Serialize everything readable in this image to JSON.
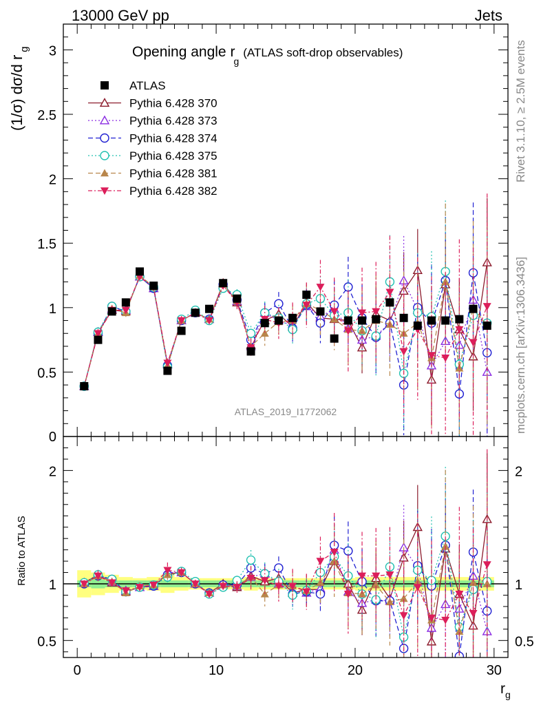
{
  "header": {
    "left": "13000 GeV pp",
    "right": "Jets"
  },
  "side_labels": {
    "rivet": "Rivet 3.1.10, ≥ 2.5M events",
    "mcplots": "mcplots.cern.ch [arXiv:1306.3436]"
  },
  "watermark": "ATLAS_2019_I1772062",
  "colors": {
    "atlas": "#000000",
    "p370": "#8b1a2b",
    "p373": "#8a2be2",
    "p374": "#1f1fd1",
    "p375": "#20c0b0",
    "p381": "#b8864b",
    "p382": "#dc1e5a",
    "band_inner": "#90ee90",
    "band_outer": "#ffff80"
  },
  "chart_data": [
    {
      "type": "scatter",
      "title_main": "Opening angle r",
      "title_sub": "g",
      "title_rest": "(ATLAS soft-drop observables)",
      "ylabel_main": "(1/σ) dσ/d r",
      "ylabel_sub": "g",
      "xlim": [
        -1,
        31
      ],
      "ylim": [
        0,
        3.2
      ],
      "yticks": [
        0.5,
        1,
        1.5,
        2,
        2.5,
        3
      ],
      "ytick_labels": [
        "0.5",
        "1",
        "1.5",
        "2",
        "2.5",
        "3"
      ],
      "partial_tick_label": "0",
      "legend_position": "top-left",
      "x": [
        0.5,
        1.5,
        2.5,
        3.5,
        4.5,
        5.5,
        6.5,
        7.5,
        8.5,
        9.5,
        10.5,
        11.5,
        12.5,
        13.5,
        14.5,
        15.5,
        16.5,
        17.5,
        18.5,
        19.5,
        20.5,
        21.5,
        22.5,
        23.5,
        24.5,
        25.5,
        26.5,
        27.5,
        28.5,
        29.5
      ],
      "series": [
        {
          "name": "ATLAS",
          "marker": "square",
          "y": [
            0.39,
            0.75,
            0.97,
            1.04,
            1.28,
            1.17,
            0.51,
            0.82,
            0.96,
            0.99,
            1.19,
            1.07,
            0.66,
            0.88,
            0.9,
            0.92,
            1.1,
            0.97,
            0.76,
            0.9,
            0.9,
            0.91,
            1.04,
            0.92,
            0.86,
            0.9,
            0.9,
            0.91,
            0.99,
            0.86
          ]
        },
        {
          "name": "Pythia 6.428 370",
          "marker": "open-triangle",
          "y": [
            0.39,
            0.81,
            0.98,
            0.97,
            1.24,
            1.15,
            0.56,
            0.9,
            0.96,
            0.91,
            1.19,
            1.04,
            0.71,
            0.9,
            0.95,
            0.85,
            1.04,
            0.92,
            0.91,
            0.9,
            0.69,
            0.95,
            0.9,
            1.13,
            1.29,
            0.44,
            1.18,
            0.83,
            0.62,
            1.35
          ]
        },
        {
          "name": "Pythia 6.428 373",
          "marker": "open-triangle",
          "y": [
            0.39,
            0.81,
            0.99,
            0.98,
            1.24,
            1.15,
            0.56,
            0.9,
            0.96,
            0.91,
            1.18,
            1.05,
            0.7,
            0.96,
            0.9,
            0.86,
            1.01,
            0.93,
            0.99,
            0.84,
            0.75,
            0.78,
            0.88,
            1.21,
            0.98,
            0.55,
            0.74,
            0.71,
            1.06,
            0.5
          ]
        },
        {
          "name": "Pythia 6.428 374",
          "marker": "open-circle",
          "y": [
            0.39,
            0.8,
            1.01,
            0.97,
            1.24,
            1.15,
            0.55,
            0.9,
            0.96,
            0.91,
            1.18,
            1.06,
            0.75,
            0.96,
            1.03,
            0.84,
            1.02,
            0.88,
            1.02,
            1.16,
            0.92,
            0.77,
            0.88,
            0.4,
            1.0,
            0.88,
            1.21,
            0.33,
            1.27,
            0.65
          ]
        },
        {
          "name": "Pythia 6.428 375",
          "marker": "open-circle",
          "y": [
            0.39,
            0.81,
            1.01,
            0.97,
            1.24,
            1.16,
            0.54,
            0.91,
            0.98,
            0.9,
            1.15,
            1.1,
            0.8,
            0.96,
            0.92,
            0.83,
            1.03,
            1.07,
            0.94,
            0.96,
            0.82,
            0.78,
            1.2,
            0.49,
            0.96,
            0.93,
            1.28,
            0.56,
            0.94,
            0.88
          ]
        },
        {
          "name": "Pythia 6.428 381",
          "marker": "triangle",
          "y": [
            0.39,
            0.8,
            0.99,
            0.96,
            1.25,
            1.16,
            0.55,
            0.9,
            0.96,
            0.91,
            1.18,
            1.05,
            0.7,
            0.8,
            0.89,
            0.9,
            1.03,
            0.98,
            0.91,
            0.83,
            0.82,
            0.9,
            0.87,
            0.8,
            0.88,
            0.61,
            1.2,
            0.53,
            1.0,
            0.86
          ]
        },
        {
          "name": "Pythia 6.428 382",
          "marker": "inv-triangle",
          "y": [
            0.39,
            0.8,
            0.98,
            0.98,
            1.24,
            1.16,
            0.57,
            0.9,
            0.96,
            0.9,
            1.17,
            1.04,
            0.69,
            0.91,
            0.88,
            0.9,
            1.02,
            1.16,
            0.97,
            0.82,
            0.96,
            0.97,
            1.12,
            0.66,
            0.83,
            0.63,
            0.61,
            0.83,
            0.73,
            1.01
          ]
        }
      ],
      "errors": [
        0.005,
        0.02,
        0.02,
        0.02,
        0.02,
        0.02,
        0.02,
        0.02,
        0.02,
        0.02,
        0.02,
        0.03,
        0.04,
        0.06,
        0.07,
        0.08,
        0.1,
        0.12,
        0.15,
        0.18,
        0.2,
        0.22,
        0.25,
        0.3,
        0.32,
        0.35,
        0.38,
        0.4,
        0.42,
        0.5
      ]
    },
    {
      "type": "scatter",
      "ylabel": "Ratio to ATLAS",
      "xlabel_main": "r",
      "xlabel_sub": "g",
      "xlim": [
        -1,
        31
      ],
      "ylim": [
        0.35,
        2.3
      ],
      "xticks": [
        0,
        10,
        20,
        30
      ],
      "xtick_labels": [
        "0",
        "10",
        "20",
        "30"
      ],
      "yticks": [
        0.5,
        1,
        2
      ],
      "ytick_labels": [
        "0.5",
        "1",
        "2"
      ],
      "band_inner": [
        0.03,
        0.04,
        0.03,
        0.03,
        0.03,
        0.03,
        0.03,
        0.03,
        0.03,
        0.03,
        0.03,
        0.03,
        0.03,
        0.03,
        0.03,
        0.03,
        0.03,
        0.03,
        0.03,
        0.03,
        0.03,
        0.03,
        0.03,
        0.03,
        0.03,
        0.03,
        0.03,
        0.03,
        0.03,
        0.03
      ],
      "band_outer": [
        0.12,
        0.1,
        0.08,
        0.06,
        0.05,
        0.06,
        0.08,
        0.06,
        0.05,
        0.05,
        0.05,
        0.05,
        0.06,
        0.05,
        0.05,
        0.05,
        0.05,
        0.05,
        0.05,
        0.05,
        0.06,
        0.06,
        0.06,
        0.06,
        0.06,
        0.06,
        0.06,
        0.06,
        0.06,
        0.06
      ],
      "series": [
        {
          "name": "Pythia 6.428 370",
          "y": [
            1.01,
            1.08,
            1.01,
            0.93,
            0.97,
            0.98,
            1.09,
            1.1,
            1.0,
            0.92,
            1.0,
            0.97,
            1.07,
            1.02,
            1.05,
            0.92,
            0.95,
            0.95,
            1.2,
            1.0,
            0.77,
            1.05,
            0.87,
            1.23,
            1.5,
            0.49,
            1.31,
            0.91,
            0.63,
            1.57
          ]
        },
        {
          "name": "Pythia 6.428 373",
          "y": [
            1.01,
            1.08,
            1.02,
            0.94,
            0.97,
            0.98,
            1.1,
            1.1,
            1.0,
            0.92,
            0.99,
            0.98,
            1.06,
            1.09,
            1.0,
            0.93,
            0.92,
            0.96,
            1.3,
            0.93,
            0.83,
            0.86,
            0.85,
            1.32,
            1.14,
            0.61,
            0.82,
            0.78,
            1.07,
            0.58
          ]
        },
        {
          "name": "Pythia 6.428 374",
          "y": [
            1.0,
            1.07,
            1.04,
            0.93,
            0.97,
            0.98,
            1.08,
            1.1,
            1.0,
            0.92,
            0.99,
            0.99,
            1.14,
            1.09,
            1.14,
            0.91,
            0.93,
            0.91,
            1.34,
            1.29,
            1.02,
            0.85,
            0.85,
            0.43,
            1.16,
            0.98,
            1.34,
            0.36,
            1.28,
            0.76
          ]
        },
        {
          "name": "Pythia 6.428 375",
          "y": [
            1.01,
            1.08,
            1.04,
            0.93,
            0.97,
            0.99,
            1.06,
            1.11,
            1.02,
            0.91,
            0.97,
            1.03,
            1.21,
            1.09,
            1.02,
            0.9,
            0.94,
            1.1,
            1.24,
            1.07,
            0.91,
            0.86,
            1.15,
            0.53,
            1.12,
            1.03,
            1.42,
            0.62,
            0.95,
            1.02
          ]
        },
        {
          "name": "Pythia 6.428 381",
          "y": [
            1.0,
            1.07,
            1.02,
            0.92,
            0.98,
            0.99,
            1.08,
            1.1,
            1.0,
            0.92,
            0.99,
            0.98,
            1.06,
            0.91,
            0.99,
            0.98,
            0.94,
            1.01,
            1.2,
            0.92,
            0.91,
            0.99,
            0.84,
            0.87,
            1.02,
            0.68,
            1.33,
            0.58,
            1.01,
            1.0
          ]
        },
        {
          "name": "Pythia 6.428 382",
          "y": [
            1.0,
            1.07,
            1.01,
            0.94,
            0.97,
            0.99,
            1.12,
            1.1,
            1.0,
            0.91,
            0.98,
            0.97,
            1.05,
            1.03,
            0.98,
            0.98,
            0.93,
            1.2,
            1.28,
            0.91,
            1.07,
            1.07,
            1.08,
            0.72,
            0.97,
            0.7,
            0.68,
            0.91,
            0.74,
            1.17
          ]
        }
      ]
    }
  ]
}
